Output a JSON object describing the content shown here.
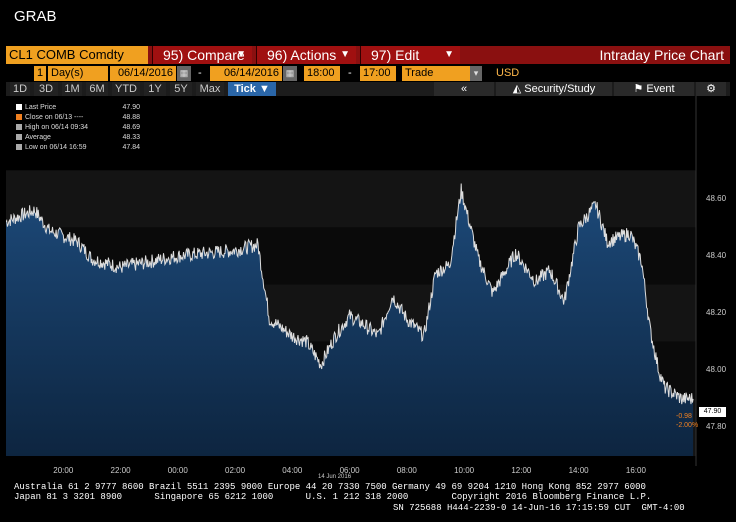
{
  "window_title": "GRAB",
  "toolbar": {
    "ticker": "CL1 COMB Comdty",
    "compare": "95) Compare",
    "actions": "96) Actions",
    "edit": "97) Edit",
    "title": "Intraday Price Chart"
  },
  "params": {
    "count": "1",
    "unit": "Day(s)",
    "start_date": "06/14/2016",
    "end_date": "06/14/2016",
    "start_time": "18:00",
    "end_time": "17:00",
    "market": "Trade",
    "currency": "USD",
    "dash": "-"
  },
  "periods": [
    "1D",
    "3D",
    "1M",
    "6M",
    "YTD",
    "1Y",
    "5Y",
    "Max"
  ],
  "active_period": "Tick ▼",
  "tools": {
    "back": "«",
    "security": "Security/Study",
    "event": "Event",
    "gear": "⚙"
  },
  "legend": [
    {
      "label": "Last Price",
      "value": "47.90",
      "color": "#ffffff"
    },
    {
      "label": "Close on 06/13 ----",
      "value": "48.88",
      "color": "#f08020"
    },
    {
      "label": "High on 06/14 09:34",
      "value": "48.69",
      "color": "#aaaaaa"
    },
    {
      "label": "Average",
      "value": "48.33",
      "color": "#aaaaaa"
    },
    {
      "label": "Low on 06/14 16:59",
      "value": "47.84",
      "color": "#aaaaaa"
    }
  ],
  "last_price_label": "47.90",
  "change_abs": "-0.98",
  "change_pct": "-2.00%",
  "date_marker": "14 Jun 2016",
  "chart_data": {
    "type": "line",
    "title": "",
    "xlabel": "",
    "ylabel": "",
    "ylim": [
      47.7,
      48.96
    ],
    "y_ticks": [
      "48.60",
      "48.40",
      "48.20",
      "48.00",
      "47.80"
    ],
    "x_ticks": [
      "20:00",
      "22:00",
      "00:00",
      "02:00",
      "04:00",
      "06:00",
      "08:00",
      "10:00",
      "12:00",
      "14:00",
      "16:00"
    ],
    "x_hours": [
      18.0,
      19.0,
      19.5,
      20.5,
      21.0,
      22.0,
      23.0,
      24.0,
      25.0,
      26.0,
      26.8,
      27.2,
      28.0,
      28.5,
      29.0,
      29.5,
      30.0,
      30.5,
      31.0,
      31.5,
      32.0,
      32.6,
      33.0,
      33.5,
      33.9,
      34.5,
      35.0,
      35.8,
      36.5,
      37.0,
      37.5,
      38.0,
      38.6,
      39.0,
      39.8,
      40.2,
      40.5,
      40.8,
      41.0,
      41.3,
      41.6,
      41.8,
      42.0
    ],
    "values": [
      48.52,
      48.56,
      48.49,
      48.45,
      48.39,
      48.36,
      48.38,
      48.4,
      48.41,
      48.42,
      48.44,
      48.18,
      48.12,
      48.1,
      48.02,
      48.12,
      48.19,
      48.16,
      48.12,
      48.26,
      48.18,
      48.12,
      48.34,
      48.37,
      48.63,
      48.39,
      48.27,
      48.41,
      48.31,
      48.35,
      48.24,
      48.5,
      48.58,
      48.45,
      48.48,
      48.38,
      48.14,
      48.0,
      47.94,
      47.92,
      47.9,
      47.9,
      47.9
    ]
  },
  "footer": {
    "line1": "Australia 61 2 9777 8600 Brazil 5511 2395 9000 Europe 44 20 7330 7500 Germany 49 69 9204 1210 Hong Kong 852 2977 6000",
    "line2": "Japan 81 3 3201 8900      Singapore 65 6212 1000      U.S. 1 212 318 2000        Copyright 2016 Bloomberg Finance L.P.",
    "line3": "SN 725688 H444-2239-0 14-Jun-16 17:15:59 CUT  GMT-4:00"
  }
}
